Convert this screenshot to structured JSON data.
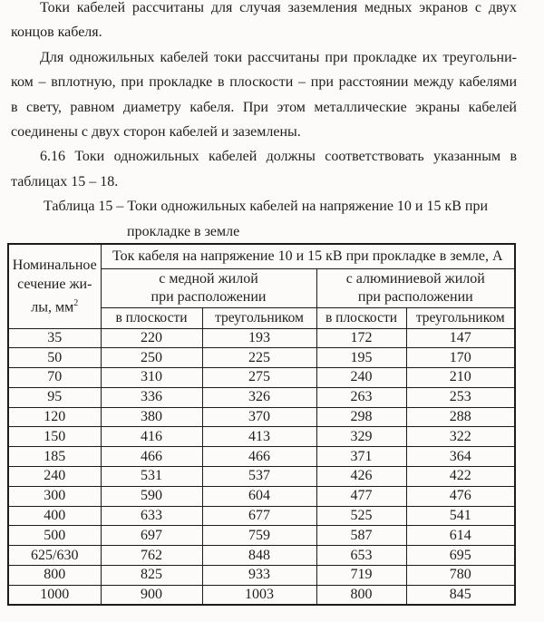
{
  "document": {
    "paragraphs": [
      {
        "lines": [
          "Токи кабелей рассчитаны для случая заземления медных экранов с двух",
          "концов кабеля."
        ]
      },
      {
        "lines": [
          "Для одножильных кабелей токи рассчитаны при прокладке их треугольни-",
          "ком – вплотную, при прокладке в плоскости – при расстоянии между кабелями",
          "в свету, равном диаметру кабеля. При этом металлические экраны кабелей",
          "соединены с двух сторон кабелей и заземлены."
        ]
      },
      {
        "lines": [
          "6.16 Токи одножильных кабелей должны соответствовать указанным в",
          "таблицах 15 – 18."
        ]
      }
    ],
    "caption": {
      "line1": "Таблица 15 – Токи одножильных кабелей на напряжение 10 и 15 кВ при",
      "line2": "прокладке в земле"
    }
  },
  "table": {
    "corner_header": {
      "line1": "Номинальное",
      "line2": "сечение жи-",
      "line3": "лы, мм",
      "sup": "2"
    },
    "span_header": "Ток кабеля на напряжение 10 и 15 кВ при прокладке в земле, А",
    "group_headers": [
      {
        "line1": "с медной жилой",
        "line2": "при расположении"
      },
      {
        "line1": "с алюминиевой жилой",
        "line2": "при расположении"
      }
    ],
    "column_headers": [
      "в плоскости",
      "треугольником",
      "в плоскости",
      "треугольником"
    ],
    "rows": [
      [
        "35",
        "220",
        "193",
        "172",
        "147"
      ],
      [
        "50",
        "250",
        "225",
        "195",
        "170"
      ],
      [
        "70",
        "310",
        "275",
        "240",
        "210"
      ],
      [
        "95",
        "336",
        "326",
        "263",
        "253"
      ],
      [
        "120",
        "380",
        "370",
        "298",
        "288"
      ],
      [
        "150",
        "416",
        "413",
        "329",
        "322"
      ],
      [
        "185",
        "466",
        "466",
        "371",
        "364"
      ],
      [
        "240",
        "531",
        "537",
        "426",
        "422"
      ],
      [
        "300",
        "590",
        "604",
        "477",
        "476"
      ],
      [
        "400",
        "633",
        "677",
        "525",
        "541"
      ],
      [
        "500",
        "697",
        "759",
        "587",
        "614"
      ],
      [
        "625/630",
        "762",
        "848",
        "653",
        "695"
      ],
      [
        "800",
        "825",
        "933",
        "719",
        "780"
      ],
      [
        "1000",
        "900",
        "1003",
        "800",
        "845"
      ]
    ]
  }
}
